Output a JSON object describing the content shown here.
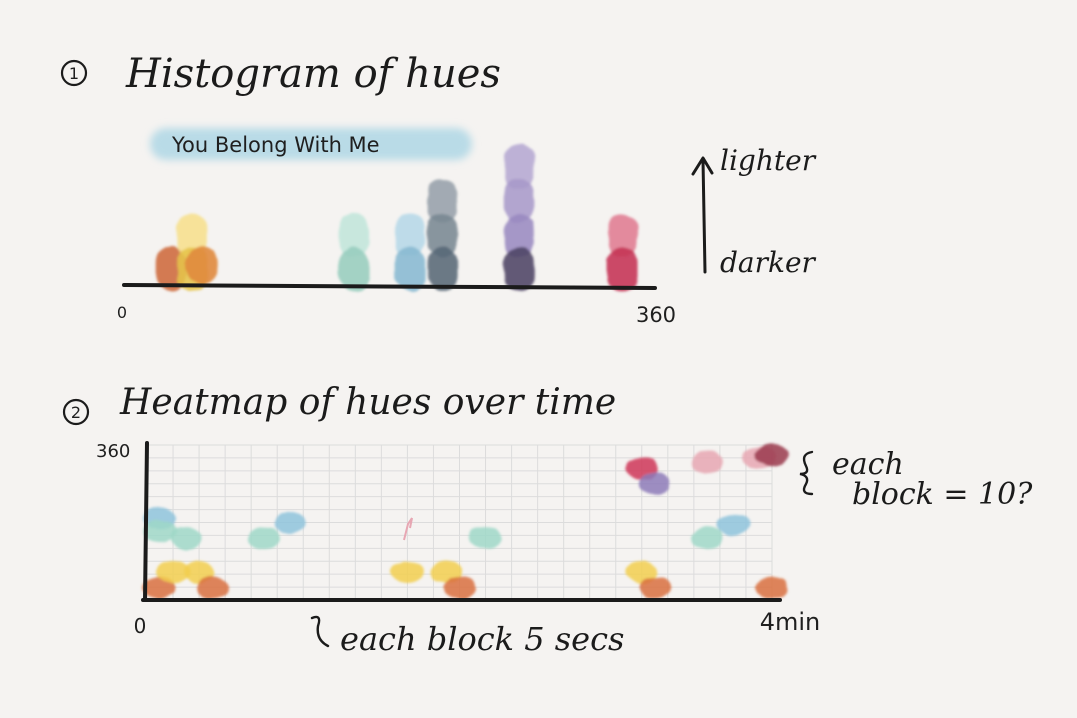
{
  "section1": {
    "number": "1",
    "title": "Histogram of hues",
    "song_label": "You Belong With Me",
    "axis_start": "0",
    "axis_end": "360",
    "lighter_label": "lighter",
    "darker_label": "darker"
  },
  "section2": {
    "number": "2",
    "title": "Heatmap of hues over time",
    "y_top_label": "360",
    "x_start_label": "0",
    "x_end_label": "4min",
    "x_note": "each block 5 secs",
    "y_note_line1": "each",
    "y_note_line2": "block = 10?"
  },
  "colors": {
    "ink": "#1b1b1b",
    "orange": "#d9703f",
    "yellow": "#f2cf4f",
    "mint": "#9fd8c8",
    "light_blue": "#8ec3dc",
    "slate": "#5d6e7c",
    "purple": "#8d7bb8",
    "dark_navy": "#3a3552",
    "crimson": "#cf3558",
    "pink": "#e7a7b3",
    "maroon": "#9a3a4e",
    "highlight": "#b9dbe7",
    "grid": "#dcdcdc"
  },
  "chart_data": [
    {
      "type": "bar",
      "title": "Histogram of hues",
      "xlabel": "",
      "ylabel": "",
      "xlim": [
        0,
        360
      ],
      "series": [
        {
          "color": "#d9703f",
          "values": [
            {
              "hue": 32,
              "level": 1
            }
          ]
        },
        {
          "color": "#f2cf4f",
          "values": [
            {
              "hue": 46,
              "level": 2
            }
          ]
        },
        {
          "color": "#9fd8c8",
          "values": [
            {
              "hue": 156,
              "level": 2
            }
          ]
        },
        {
          "color": "#8ec3dc",
          "values": [
            {
              "hue": 194,
              "level": 2
            }
          ]
        },
        {
          "color": "#5d6e7c",
          "values": [
            {
              "hue": 216,
              "level": 3
            }
          ]
        },
        {
          "color": "#8d7bb8",
          "values": [
            {
              "hue": 268,
              "level": 4
            }
          ]
        },
        {
          "color": "#cf3558",
          "values": [
            {
              "hue": 338,
              "level": 2
            }
          ]
        }
      ]
    },
    {
      "type": "heatmap",
      "title": "Heatmap of hues over time",
      "xlabel": "",
      "ylabel": "",
      "xlim": [
        0,
        240
      ],
      "ylim": [
        0,
        360
      ],
      "cells": [
        {
          "t": 5,
          "hue": 28,
          "color": "#d9703f"
        },
        {
          "t": 10,
          "hue": 65,
          "color": "#f2cf4f"
        },
        {
          "t": 5,
          "hue": 190,
          "color": "#8ec3dc"
        },
        {
          "t": 5,
          "hue": 160,
          "color": "#9fd8c8"
        },
        {
          "t": 15,
          "hue": 145,
          "color": "#9fd8c8"
        },
        {
          "t": 20,
          "hue": 65,
          "color": "#f2cf4f"
        },
        {
          "t": 25,
          "hue": 28,
          "color": "#d9703f"
        },
        {
          "t": 45,
          "hue": 145,
          "color": "#9fd8c8"
        },
        {
          "t": 55,
          "hue": 180,
          "color": "#8ec3dc"
        },
        {
          "t": 100,
          "hue": 65,
          "color": "#f2cf4f"
        },
        {
          "t": 115,
          "hue": 65,
          "color": "#f2cf4f"
        },
        {
          "t": 120,
          "hue": 28,
          "color": "#d9703f"
        },
        {
          "t": 130,
          "hue": 145,
          "color": "#9fd8c8"
        },
        {
          "t": 190,
          "hue": 65,
          "color": "#f2cf4f"
        },
        {
          "t": 195,
          "hue": 28,
          "color": "#d9703f"
        },
        {
          "t": 190,
          "hue": 305,
          "color": "#cf3558"
        },
        {
          "t": 195,
          "hue": 270,
          "color": "#8d7bb8"
        },
        {
          "t": 215,
          "hue": 145,
          "color": "#9fd8c8"
        },
        {
          "t": 225,
          "hue": 175,
          "color": "#8ec3dc"
        },
        {
          "t": 215,
          "hue": 320,
          "color": "#e7a7b3"
        },
        {
          "t": 235,
          "hue": 330,
          "color": "#e7a7b3"
        },
        {
          "t": 240,
          "hue": 335,
          "color": "#9a3a4e"
        },
        {
          "t": 240,
          "hue": 28,
          "color": "#d9703f"
        }
      ]
    }
  ]
}
